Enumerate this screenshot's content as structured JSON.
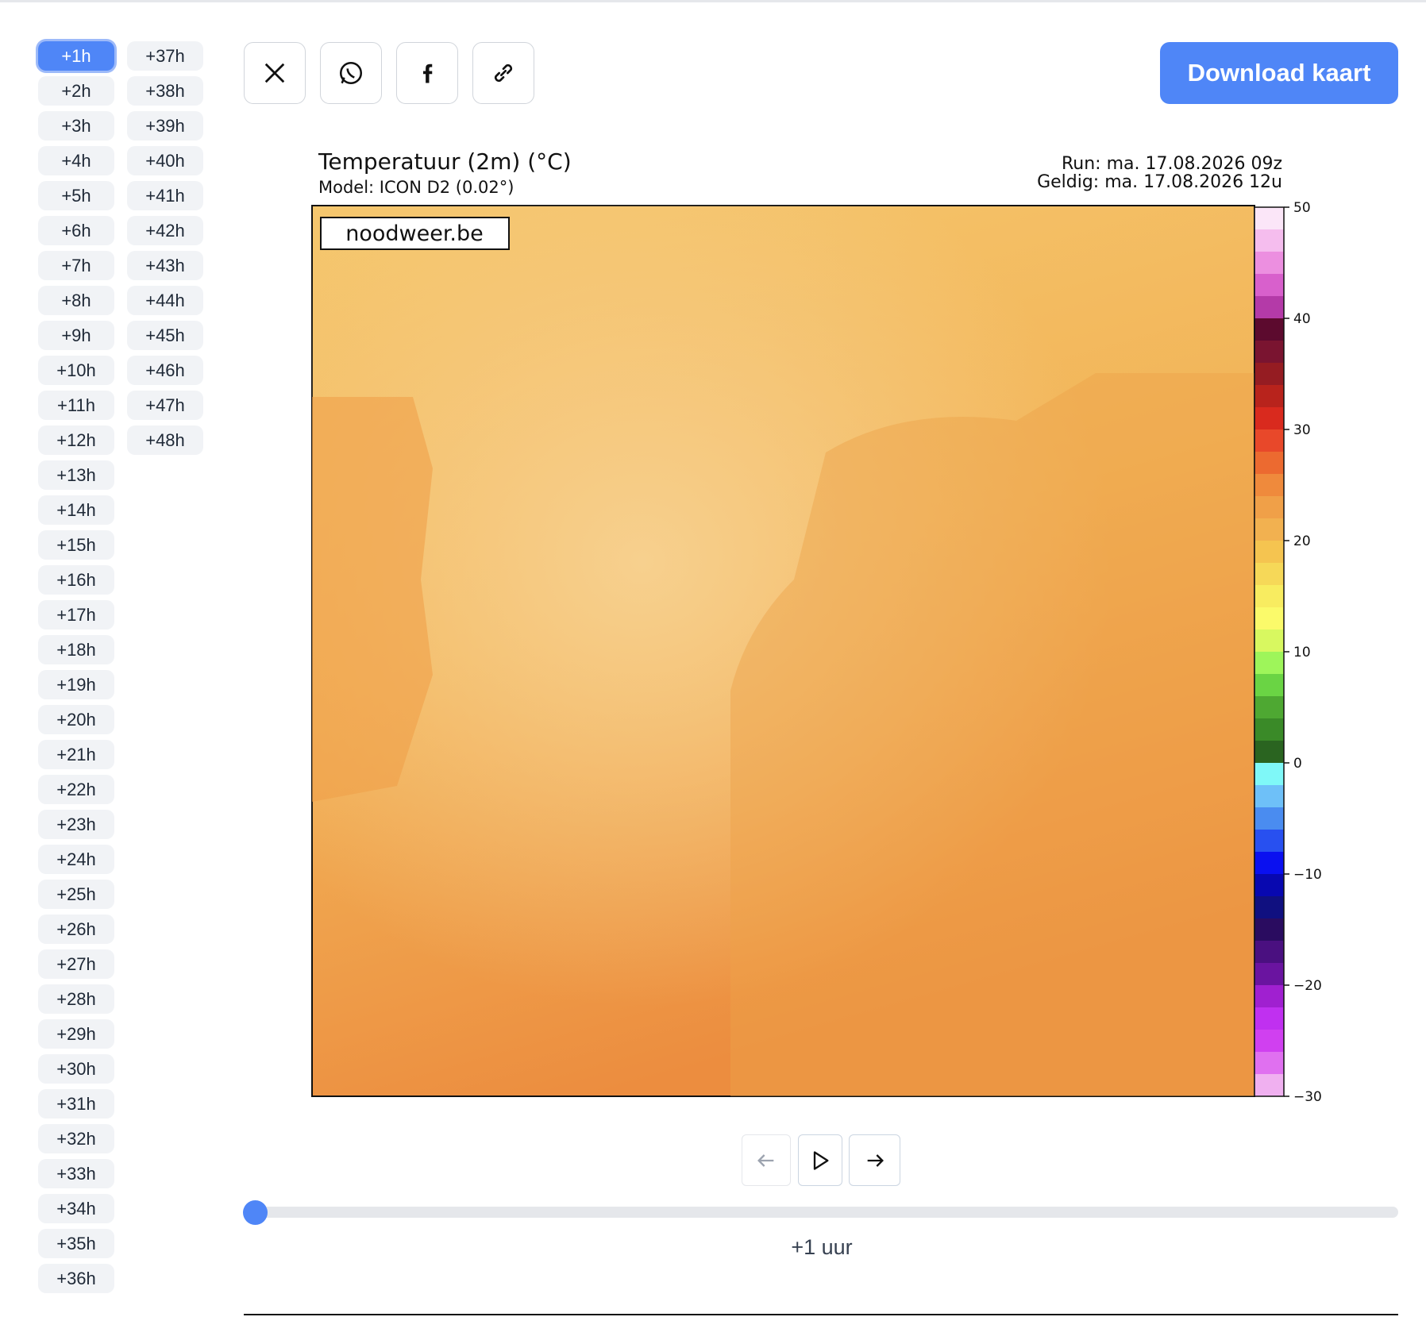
{
  "hour_buttons": [
    "+1h",
    "+2h",
    "+3h",
    "+4h",
    "+5h",
    "+6h",
    "+7h",
    "+8h",
    "+9h",
    "+10h",
    "+11h",
    "+12h",
    "+13h",
    "+14h",
    "+15h",
    "+16h",
    "+17h",
    "+18h",
    "+19h",
    "+20h",
    "+21h",
    "+22h",
    "+23h",
    "+24h",
    "+25h",
    "+26h",
    "+27h",
    "+28h",
    "+29h",
    "+30h",
    "+31h",
    "+32h",
    "+33h",
    "+34h",
    "+35h",
    "+36h",
    "+37h",
    "+38h",
    "+39h",
    "+40h",
    "+41h",
    "+42h",
    "+43h",
    "+44h",
    "+45h",
    "+46h",
    "+47h",
    "+48h"
  ],
  "active_hour": 0,
  "download_button": "Download kaart",
  "map": {
    "title": "Temperatuur (2m) (°C)",
    "subtitle": "Model: ICON D2 (0.02°)",
    "run": "Run: ma. 17.08.2026 09z",
    "valid": "Geldig: ma. 17.08.2026 12u",
    "watermark": "noodweer.be",
    "colorbar": {
      "lim": [
        -30,
        50
      ],
      "ticks": [
        50,
        40,
        30,
        20,
        10,
        0,
        {
          "value": -10,
          "label": "−10"
        },
        {
          "value": -20,
          "label": "−20"
        },
        {
          "value": -30,
          "label": "−30"
        }
      ]
    }
  },
  "slider_label": "+1 uur"
}
